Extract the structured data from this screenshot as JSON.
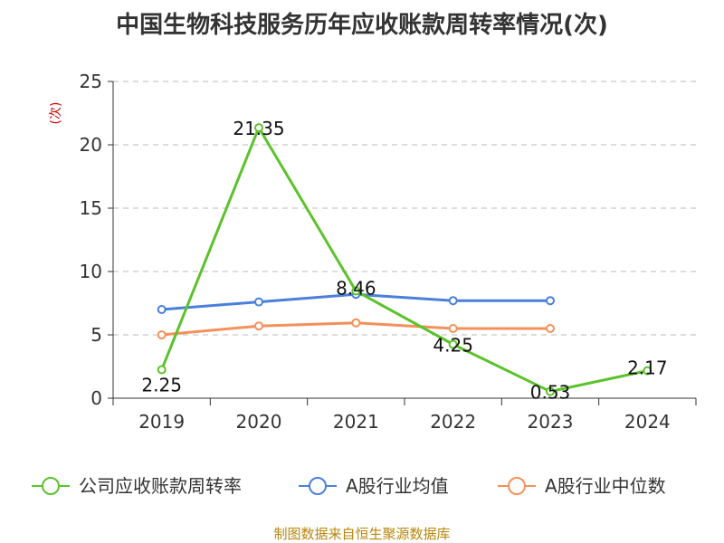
{
  "chart_data": {
    "type": "line",
    "title": "中国生物科技服务历年应收账款周转率情况(次)",
    "ylabel": "(次)",
    "categories": [
      "2019",
      "2020",
      "2021",
      "2022",
      "2023",
      "2024"
    ],
    "ylim": [
      0,
      25
    ],
    "yticks": [
      0,
      5,
      10,
      15,
      20,
      25
    ],
    "grid": true,
    "legend_position": "bottom",
    "series": [
      {
        "name": "公司应收账款周转率",
        "color": "#5cc22c",
        "values": [
          2.25,
          21.35,
          8.46,
          4.25,
          0.53,
          2.17
        ],
        "labels": [
          "2.25",
          "21.35",
          "8.46",
          "4.25",
          "0.53",
          "2.17"
        ]
      },
      {
        "name": "A股行业均值",
        "color": "#4a7fdb",
        "values": [
          7.0,
          7.6,
          8.2,
          7.7,
          7.7,
          null
        ]
      },
      {
        "name": "A股行业中位数",
        "color": "#f4905a",
        "values": [
          5.0,
          5.7,
          5.95,
          5.5,
          5.5,
          null
        ]
      }
    ],
    "source": "制图数据来自恒生聚源数据库"
  }
}
